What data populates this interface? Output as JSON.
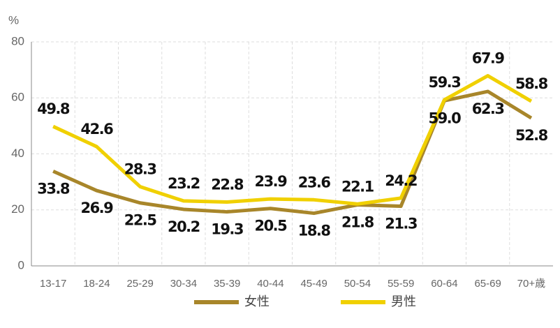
{
  "chart_data": {
    "type": "line",
    "ylabel": "%",
    "categories": [
      "13-17",
      "18-24",
      "25-29",
      "30-34",
      "35-39",
      "40-44",
      "45-49",
      "50-54",
      "55-59",
      "60-64",
      "65-69",
      "70+歳"
    ],
    "series": [
      {
        "name": "女性",
        "color": "#a8862a",
        "values": [
          33.8,
          26.9,
          22.5,
          20.2,
          19.3,
          20.5,
          18.8,
          21.8,
          21.3,
          59.0,
          62.3,
          52.8
        ],
        "value_labels": [
          "33.8",
          "26.9",
          "22.5",
          "20.2",
          "19.3",
          "20.5",
          "18.8",
          "21.8",
          "21.3",
          "59.0",
          "62.3",
          "52.8"
        ]
      },
      {
        "name": "男性",
        "color": "#f0d000",
        "values": [
          49.8,
          42.6,
          28.3,
          23.2,
          22.8,
          23.9,
          23.6,
          22.1,
          24.2,
          59.3,
          67.9,
          58.8
        ],
        "value_labels": [
          "49.8",
          "42.6",
          "28.3",
          "23.2",
          "22.8",
          "23.9",
          "23.6",
          "22.1",
          "24.2",
          "59.3",
          "67.9",
          "58.8"
        ]
      }
    ],
    "ylim": [
      0,
      80
    ],
    "yticks": [
      0,
      20,
      40,
      60,
      80
    ],
    "grid": true,
    "legend": "bottom"
  }
}
